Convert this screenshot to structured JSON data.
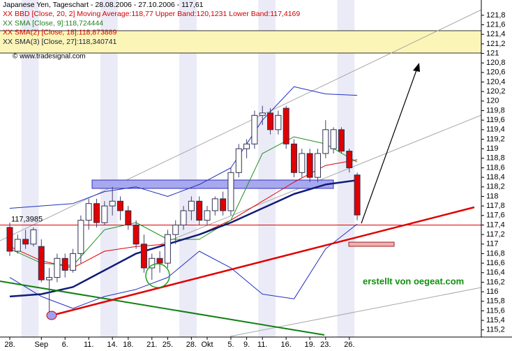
{
  "chart_data": {
    "type": "candlestick",
    "title": "Japanese Yen, Tageschart - 28.08.2006 - 27.10.2006 - 117,61",
    "legend": [
      {
        "marker": "XX",
        "text": "BBD [Close, 20, 2] Moving Average:118,77 Upper Band:120,1231 Lower Band:117,4169",
        "color": "#d00000"
      },
      {
        "marker": "XX",
        "text": "SMA [Close, 9]:118,724444",
        "color": "#208020"
      },
      {
        "marker": "XX",
        "text": "SMA(2) [Close, 18]:118,873889",
        "color": "#d00000"
      },
      {
        "marker": "XX",
        "text": "SMA(3) [Close, 27]:118,340741",
        "color": "#202040"
      }
    ],
    "credit": "© www.tradesignal.com",
    "watermark": "erstellt von oegeat.com",
    "categories": [
      "28.",
      null,
      null,
      null,
      "Sep",
      null,
      null,
      "6.",
      null,
      null,
      "11.",
      null,
      null,
      "14.",
      null,
      "18.",
      null,
      null,
      "21.",
      null,
      "25.",
      null,
      null,
      "28.",
      null,
      "Okt",
      null,
      null,
      "5.",
      null,
      "9.",
      null,
      "11.",
      null,
      null,
      "16.",
      null,
      null,
      "19.",
      null,
      "23.",
      null,
      null,
      "26.",
      null
    ],
    "open": [
      117.35,
      116.85,
      117.1,
      117.0,
      116.95,
      116.25,
      116.3,
      116.7,
      116.45,
      116.8,
      117.5,
      117.85,
      117.45,
      117.8,
      117.9,
      117.7,
      117.4,
      117.0,
      116.5,
      116.7,
      116.6,
      117.2,
      117.4,
      117.7,
      117.9,
      117.5,
      117.7,
      117.95,
      117.7,
      118.5,
      119.0,
      119.1,
      119.7,
      119.75,
      119.4,
      119.85,
      119.1,
      118.5,
      118.9,
      118.4,
      118.9,
      119.0,
      119.4,
      118.95,
      118.45
    ],
    "high": [
      117.45,
      117.2,
      117.3,
      117.35,
      117.1,
      116.5,
      116.8,
      116.8,
      116.9,
      117.6,
      117.95,
      117.95,
      117.9,
      118.2,
      118.0,
      117.8,
      117.5,
      117.2,
      116.8,
      116.85,
      117.3,
      117.5,
      117.8,
      118.0,
      118.0,
      117.8,
      118.0,
      118.1,
      118.6,
      119.1,
      119.2,
      119.8,
      119.9,
      119.85,
      119.8,
      119.9,
      119.2,
      119.0,
      119.0,
      119.0,
      119.6,
      119.45,
      119.45,
      119.0,
      118.5
    ],
    "low": [
      116.75,
      116.8,
      116.9,
      116.95,
      116.2,
      115.55,
      116.2,
      116.3,
      116.4,
      116.6,
      117.3,
      117.35,
      117.4,
      117.6,
      117.5,
      117.3,
      116.9,
      116.4,
      116.25,
      116.4,
      116.5,
      117.0,
      117.3,
      117.5,
      117.4,
      117.4,
      117.6,
      117.6,
      117.6,
      118.4,
      118.8,
      119.0,
      119.5,
      119.3,
      119.3,
      119.0,
      118.4,
      118.4,
      118.3,
      118.3,
      118.8,
      118.9,
      118.9,
      118.5,
      117.5
    ],
    "close": [
      116.85,
      117.1,
      117.0,
      117.3,
      116.25,
      116.3,
      116.7,
      116.45,
      116.8,
      117.5,
      117.85,
      117.45,
      117.8,
      117.9,
      117.7,
      117.4,
      117.0,
      116.5,
      116.7,
      116.6,
      117.2,
      117.4,
      117.7,
      117.9,
      117.5,
      117.7,
      117.95,
      117.7,
      118.5,
      119.0,
      119.1,
      119.7,
      119.75,
      119.4,
      119.7,
      119.1,
      118.5,
      118.9,
      118.4,
      118.9,
      119.4,
      119.4,
      118.95,
      118.6,
      117.61
    ],
    "up_color": "#ffffff",
    "down_color": "#e00000",
    "series": [
      {
        "color": "#2030c0",
        "width": 1,
        "x": [
          0,
          4,
          8,
          12,
          16,
          20,
          24,
          28,
          32,
          36,
          40,
          44
        ],
        "values": [
          117.75,
          117.8,
          117.85,
          118.1,
          118.2,
          118.0,
          118.25,
          118.6,
          119.6,
          120.3,
          120.15,
          120.12
        ]
      },
      {
        "color": "#2030c0",
        "width": 1,
        "x": [
          0,
          4,
          8,
          12,
          16,
          20,
          24,
          28,
          32,
          36,
          40,
          44
        ],
        "values": [
          116.3,
          115.9,
          115.65,
          115.9,
          116.05,
          116.3,
          116.85,
          116.5,
          115.95,
          115.85,
          116.9,
          117.42
        ]
      },
      {
        "color": "#e00000",
        "width": 1,
        "x": [
          0,
          4,
          8,
          12,
          16,
          20,
          24,
          28,
          32,
          36,
          40,
          44
        ],
        "values": [
          116.95,
          116.65,
          116.5,
          116.85,
          116.95,
          117.0,
          117.2,
          117.5,
          117.9,
          118.3,
          118.65,
          118.77
        ]
      },
      {
        "color": "#209020",
        "width": 1,
        "x": [
          0,
          4,
          8,
          12,
          16,
          20,
          24,
          28,
          32,
          36,
          40,
          44
        ],
        "values": [
          116.9,
          116.6,
          116.55,
          117.3,
          117.45,
          117.1,
          117.1,
          117.5,
          118.9,
          119.25,
          119.1,
          118.72
        ]
      },
      {
        "color": "#101c78",
        "width": 2.5,
        "x": [
          0,
          4,
          8,
          12,
          16,
          20,
          24,
          28,
          32,
          36,
          40,
          44
        ],
        "values": [
          115.9,
          115.95,
          116.1,
          116.45,
          116.8,
          117.0,
          117.2,
          117.45,
          117.75,
          118.05,
          118.25,
          118.34
        ]
      }
    ],
    "level": {
      "value": 117.3985,
      "label": "117,3985",
      "color": "#e00000"
    },
    "ylim": [
      115.05,
      122.12
    ],
    "yticks": [
      {
        "value": 115.2,
        "label": "115,2"
      },
      {
        "value": 115.4,
        "label": "115,4"
      },
      {
        "value": 115.6,
        "label": "115,6"
      },
      {
        "value": 115.8,
        "label": "115,8"
      },
      116,
      {
        "value": 116.2,
        "label": "116,2"
      },
      {
        "value": 116.4,
        "label": "116,4"
      },
      {
        "value": 116.6,
        "label": "116,6"
      },
      {
        "value": 116.8,
        "label": "116,8"
      },
      117,
      {
        "value": 117.2,
        "label": "117,2"
      },
      {
        "value": 117.4,
        "label": "117,4"
      },
      {
        "value": 117.6,
        "label": "117,6"
      },
      {
        "value": 117.8,
        "label": "117,8"
      },
      118,
      {
        "value": 118.2,
        "label": "118,2"
      },
      {
        "value": 118.4,
        "label": "118,4"
      },
      {
        "value": 118.6,
        "label": "118,6"
      },
      {
        "value": 118.8,
        "label": "118,8"
      },
      119,
      {
        "value": 119.2,
        "label": "119,2"
      },
      {
        "value": 119.4,
        "label": "119,4"
      },
      {
        "value": 119.6,
        "label": "119,6"
      },
      {
        "value": 119.8,
        "label": "119,8"
      },
      120,
      {
        "value": 120.2,
        "label": "120,2"
      },
      {
        "value": 120.4,
        "label": "120,4"
      },
      {
        "value": 120.6,
        "label": "120,6"
      },
      {
        "value": 120.8,
        "label": "120,8"
      },
      121,
      {
        "value": 121.2,
        "label": "121,2"
      },
      {
        "value": 121.4,
        "label": "121,4"
      },
      {
        "value": 121.6,
        "label": "121,6"
      },
      {
        "value": 121.8,
        "label": "121,8"
      }
    ],
    "grid": false
  }
}
